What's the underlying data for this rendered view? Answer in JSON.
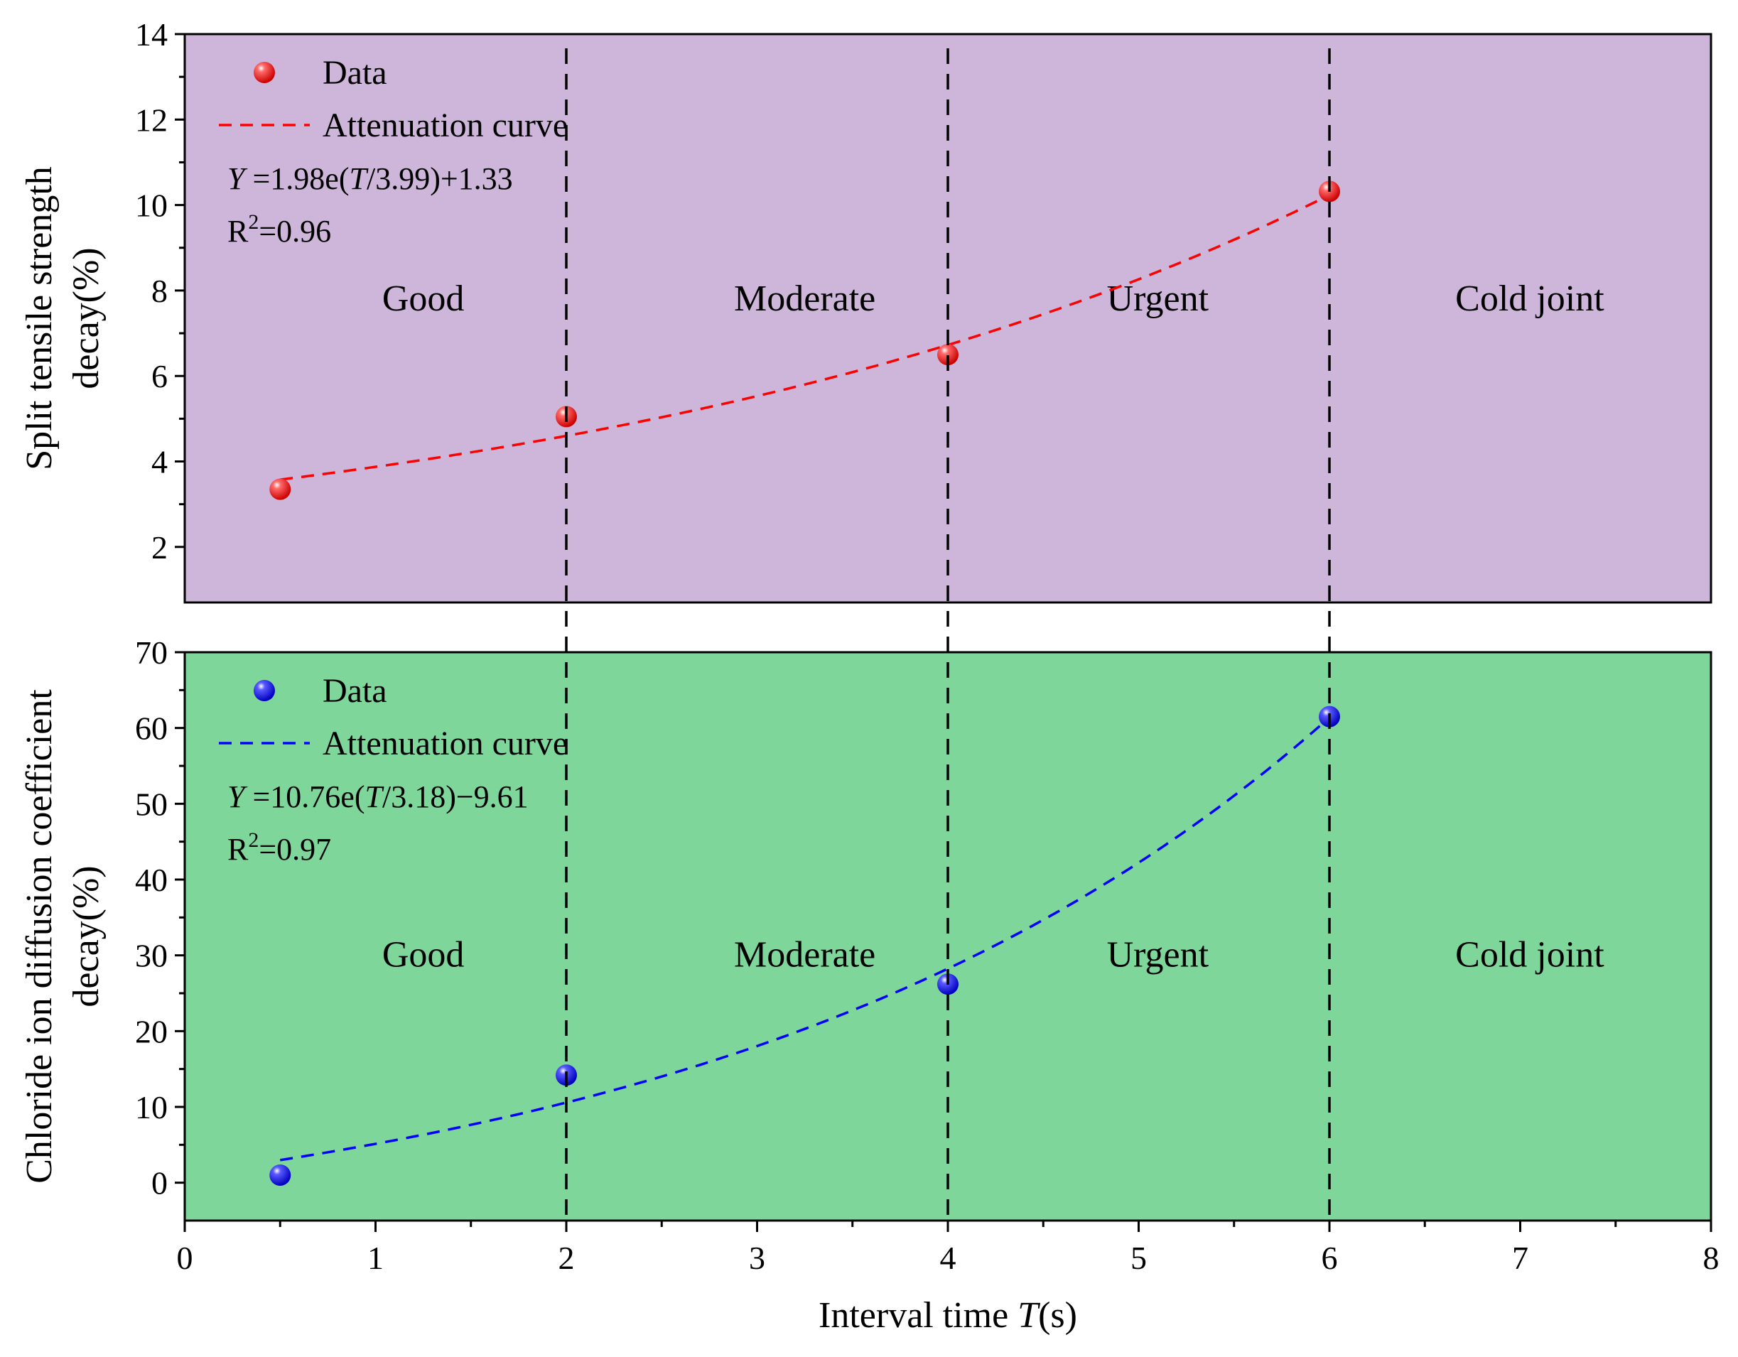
{
  "x_axis": {
    "label_prefix": "Interval time ",
    "label_var": "T",
    "label_suffix": "(s)",
    "range": [
      0,
      8
    ],
    "ticks": [
      "0",
      "1",
      "2",
      "3",
      "4",
      "5",
      "6",
      "7",
      "8"
    ],
    "tick_values": [
      0,
      1,
      2,
      3,
      4,
      5,
      6,
      7,
      8
    ]
  },
  "zone_boundaries": [
    2,
    4,
    6
  ],
  "chart_data": [
    {
      "type": "scatter",
      "name": "split-tensile",
      "ylabel_line1": "Split tensile strength",
      "ylabel_line2": "decay(%)",
      "ylim": [
        0.7,
        14
      ],
      "yticks": [
        "2",
        "4",
        "6",
        "8",
        "10",
        "12",
        "14"
      ],
      "ytick_values": [
        2,
        4,
        6,
        8,
        10,
        12,
        14
      ],
      "background": "#cdb6d9",
      "point_color": "#ff0000",
      "legend": {
        "data_label": "Data",
        "curve_label": "Attenuation curve"
      },
      "equation": {
        "var": "Y",
        "pre": " =1.98e(",
        "tvar": "T",
        "post": "/3.99)+1.33"
      },
      "r2": {
        "base": "R",
        "sup": "2",
        "rest": "=0.96"
      },
      "zones": [
        "Good",
        "Moderate",
        "Urgent",
        "Cold joint"
      ],
      "zone_label_y": 7.8,
      "x": [
        0.5,
        2,
        4,
        6
      ],
      "y": [
        3.35,
        5.05,
        6.5,
        10.32
      ],
      "fit": {
        "a": 1.98,
        "b": 3.99,
        "c": 1.33,
        "range": [
          0.5,
          6
        ]
      }
    },
    {
      "type": "scatter",
      "name": "chloride-diffusion",
      "ylabel_line1": "Chloride ion diffusion coefficient",
      "ylabel_line2": "decay(%)",
      "ylim": [
        -5,
        70
      ],
      "yticks": [
        "0",
        "10",
        "20",
        "30",
        "40",
        "50",
        "60",
        "70"
      ],
      "ytick_values": [
        0,
        10,
        20,
        30,
        40,
        50,
        60,
        70
      ],
      "background": "#7ed69b",
      "point_color": "#0000ff",
      "legend": {
        "data_label": "Data",
        "curve_label": "Attenuation curve"
      },
      "equation": {
        "var": "Y",
        "pre": " =10.76e(",
        "tvar": "T",
        "post": "/3.18)−9.61"
      },
      "r2": {
        "base": "R",
        "sup": "2",
        "rest": "=0.97"
      },
      "zones": [
        "Good",
        "Moderate",
        "Urgent",
        "Cold joint"
      ],
      "zone_label_y": 30,
      "x": [
        0.5,
        2,
        4,
        6
      ],
      "y": [
        1.0,
        14.2,
        26.2,
        61.5
      ],
      "fit": {
        "a": 10.76,
        "b": 3.18,
        "c": -9.61,
        "range": [
          0.5,
          6
        ]
      }
    }
  ]
}
